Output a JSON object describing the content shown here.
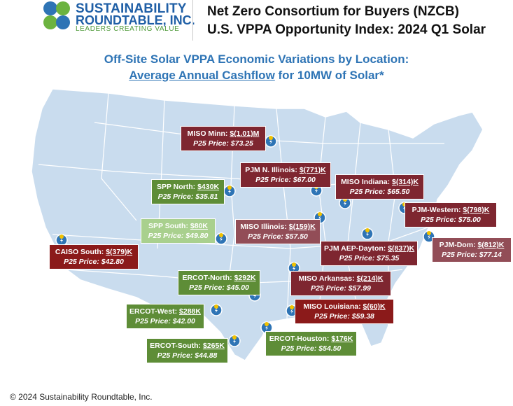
{
  "header": {
    "logo_line1": "SUSTAINABILITY",
    "logo_line2": "ROUNDTABLE, INC.",
    "logo_tagline": "LEADERS CREATING VALUE",
    "title_line1": "Net Zero Consortium for Buyers (NZCB)",
    "title_line2": "U.S. VPPA Opportunity Index: 2024 Q1 Solar"
  },
  "subtitle": {
    "line1": "Off-Site Solar VPPA Economic Variations by Location:",
    "line2_underlined": "Average Annual Cashflow",
    "line2_rest": " for 10MW of Solar*"
  },
  "markets": [
    {
      "name": "MISO Minn:",
      "value": "$(1.01)M",
      "price": "P25 Price: $73.25",
      "color": "#7e2630"
    },
    {
      "name": "PJM N. Illinois:",
      "value": "$(771)K",
      "price": "P25 Price: $67.00",
      "color": "#7e2630"
    },
    {
      "name": "MISO Indiana:",
      "value": "$(314)K",
      "price": "P25 Price: $65.50",
      "color": "#7e2630"
    },
    {
      "name": "SPP North:",
      "value": "$430K",
      "price": "P25 Price: $35.81",
      "color": "#5e8d37"
    },
    {
      "name": "PJM-Western:",
      "value": "$(798)K",
      "price": "P25 Price: $75.00",
      "color": "#7e2630"
    },
    {
      "name": "SPP South:",
      "value": "$80K",
      "price": "P25 Price: $49.80",
      "color": "#a9d08e"
    },
    {
      "name": "MISO Illinois:",
      "value": "$(159)K",
      "price": "P25 Price: $57.50",
      "color": "#924d57"
    },
    {
      "name": "PJM-Dom:",
      "value": "$(812)K",
      "price": "P25 Price: $77.14",
      "color": "#924d57"
    },
    {
      "name": "CAISO South:",
      "value": "$(379)K",
      "price": "P25 Price: $42.80",
      "color": "#8b1a1a"
    },
    {
      "name": "PJM AEP-Dayton:",
      "value": "$(837)K",
      "price": "P25 Price: $75.35",
      "color": "#7e2630"
    },
    {
      "name": "ERCOT-North:",
      "value": "$292K",
      "price": "P25 Price: $45.00",
      "color": "#5e8d37"
    },
    {
      "name": "MISO Arkansas:",
      "value": "$(214)K",
      "price": "P25 Price: $57.99",
      "color": "#7e2630"
    },
    {
      "name": "ERCOT-West:",
      "value": "$288K",
      "price": "P25 Price:  $42.00",
      "color": "#5e8d37"
    },
    {
      "name": "MISO Louisiana:",
      "value": "$(60)K",
      "price": "P25 Price: $59.38",
      "color": "#8b1a1a"
    },
    {
      "name": "ERCOT-Houston:",
      "value": "$176K",
      "price": "P25 Price: $54.50",
      "color": "#5e8d37"
    },
    {
      "name": "ERCOT-South:",
      "value": "$265K",
      "price": "P25 Price: $44.88",
      "color": "#5e8d37"
    }
  ],
  "footer": "© 2024 Sustainability Roundtable, Inc."
}
